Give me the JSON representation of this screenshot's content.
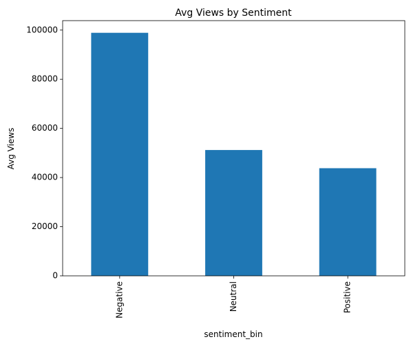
{
  "chart_data": {
    "type": "bar",
    "title": "Avg Views by Sentiment",
    "xlabel": "sentiment_bin",
    "ylabel": "Avg Views",
    "categories": [
      "Negative",
      "Neutral",
      "Positive"
    ],
    "values": [
      98900,
      51200,
      43800
    ],
    "ylim": [
      0,
      103850
    ],
    "yticks": [
      0,
      20000,
      40000,
      60000,
      80000,
      100000
    ],
    "bar_color": "#1f77b4",
    "grid": false,
    "legend": "none"
  }
}
